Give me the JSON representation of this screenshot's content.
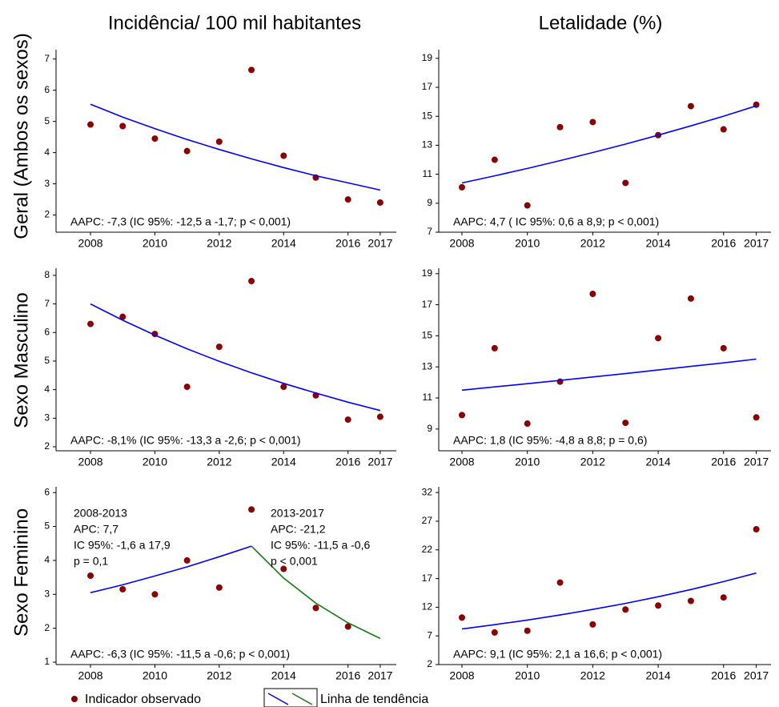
{
  "column_titles": [
    "Incidência/ 100 mil habitantes",
    "Letalidade (%)"
  ],
  "row_titles": [
    "Geral (Ambos os sexos)",
    "Sexo Masculino",
    "Sexo Feminino"
  ],
  "legend": [
    "Indicador observado",
    "Linha de tendência"
  ],
  "chart_data": [
    {
      "type": "scatter",
      "x": [
        2008,
        2009,
        2010,
        2011,
        2012,
        2013,
        2014,
        2015,
        2016,
        2017
      ],
      "series": [
        {
          "kind": "point",
          "color": "#8b0000",
          "values": [
            4.9,
            4.85,
            4.45,
            4.05,
            4.35,
            6.65,
            3.9,
            3.2,
            2.5,
            2.4
          ]
        },
        {
          "kind": "line",
          "color": "#0000ff",
          "values": [
            5.55,
            5.14,
            4.77,
            4.42,
            4.1,
            3.8,
            3.52,
            3.26,
            3.03,
            2.8
          ]
        }
      ],
      "annotation": "AAPC: -7,3 (IC 95%: -12,5 a -1,7; p < 0,001)",
      "xlim": [
        2006.93,
        2017.5
      ],
      "xticks": [
        2008,
        2010,
        2012,
        2014,
        2016,
        2017
      ],
      "ylim": [
        1.45,
        7.3
      ],
      "yticks": [
        2,
        3,
        4,
        5,
        6,
        7
      ]
    },
    {
      "type": "scatter",
      "x": [
        2008,
        2009,
        2010,
        2011,
        2012,
        2013,
        2014,
        2015,
        2016,
        2017
      ],
      "series": [
        {
          "kind": "point",
          "color": "#8b0000",
          "values": [
            10.1,
            12.0,
            8.85,
            14.25,
            14.6,
            10.4,
            13.7,
            15.7,
            14.1,
            15.8
          ]
        },
        {
          "kind": "line",
          "color": "#0000ff",
          "values": [
            10.4,
            10.89,
            11.4,
            11.94,
            12.5,
            13.08,
            13.7,
            14.34,
            15.01,
            15.72
          ]
        }
      ],
      "annotation": "AAPC: 4,7 ( IC 95%: 0,6 a 8,9; p < 0,001)",
      "xlim": [
        2007.29,
        2017.45
      ],
      "xticks": [
        2008,
        2010,
        2012,
        2014,
        2016,
        2017
      ],
      "ylim": [
        7,
        19.6
      ],
      "yticks": [
        7,
        9,
        11,
        13,
        15,
        17,
        19
      ]
    },
    {
      "type": "scatter",
      "x": [
        2008,
        2009,
        2010,
        2011,
        2012,
        2013,
        2014,
        2015,
        2016,
        2017
      ],
      "series": [
        {
          "kind": "point",
          "color": "#8b0000",
          "values": [
            6.3,
            6.55,
            5.95,
            4.1,
            5.5,
            7.8,
            4.1,
            3.8,
            2.95,
            3.05
          ]
        },
        {
          "kind": "line",
          "color": "#0000ff",
          "values": [
            7.0,
            6.43,
            5.91,
            5.43,
            4.99,
            4.59,
            4.22,
            3.88,
            3.56,
            3.27
          ]
        }
      ],
      "annotation": "AAPC: -8,1% (IC 95%: -13,3 a -2,6; p < 0,001)",
      "xlim": [
        2006.93,
        2017.5
      ],
      "xticks": [
        2008,
        2010,
        2012,
        2014,
        2016,
        2017
      ],
      "ylim": [
        1.86,
        8.25
      ],
      "yticks": [
        2,
        3,
        4,
        5,
        6,
        7,
        8
      ]
    },
    {
      "type": "scatter",
      "x": [
        2008,
        2009,
        2010,
        2011,
        2012,
        2013,
        2014,
        2015,
        2016,
        2017
      ],
      "series": [
        {
          "kind": "point",
          "color": "#8b0000",
          "values": [
            9.9,
            14.2,
            9.35,
            12.05,
            17.7,
            9.4,
            14.85,
            17.4,
            14.2,
            9.75
          ]
        },
        {
          "kind": "line",
          "color": "#0000ff",
          "values": [
            11.5,
            11.71,
            11.92,
            12.13,
            12.35,
            12.57,
            12.8,
            13.03,
            13.26,
            13.5
          ]
        }
      ],
      "annotation": "AAPC: 1,8 (IC 95%: -4,8 a 8,8; p = 0,6)",
      "xlim": [
        2007.29,
        2017.45
      ],
      "xticks": [
        2008,
        2010,
        2012,
        2014,
        2016,
        2017
      ],
      "ylim": [
        7.6,
        19.35
      ],
      "yticks": [
        9,
        11,
        13,
        15,
        17,
        19
      ]
    },
    {
      "type": "scatter",
      "x": [
        2008,
        2009,
        2010,
        2011,
        2012,
        2013,
        2014,
        2015,
        2016,
        2017
      ],
      "series": [
        {
          "kind": "point",
          "color": "#8b0000",
          "values": [
            3.55,
            3.15,
            3.0,
            4.0,
            3.2,
            5.5,
            3.75,
            2.6,
            2.05,
            null
          ]
        },
        {
          "kind": "line",
          "color": "#0000ff",
          "values": [
            3.05,
            3.28,
            3.54,
            3.81,
            4.11,
            4.42,
            null,
            null,
            null,
            null
          ]
        },
        {
          "kind": "line",
          "color": "#1a7a1a",
          "values": [
            null,
            null,
            null,
            null,
            null,
            4.42,
            3.48,
            2.74,
            2.16,
            1.7
          ]
        }
      ],
      "annotation": "AAPC: -6,3 (IC 95%: -11,5 a -0,6; p < 0,001)",
      "segment_notes": [
        [
          "2008-2013",
          "APC: 7,7",
          "IC 95%: -1,6 a 17,9",
          "p = 0,1"
        ],
        [
          "2013-2017",
          "APC: -21,2",
          "IC 95%: -11,5 a -0,6",
          "p < 0,001"
        ]
      ],
      "xlim": [
        2006.93,
        2017.5
      ],
      "xticks": [
        2008,
        2010,
        2012,
        2014,
        2016,
        2017
      ],
      "ylim": [
        0.93,
        6.17
      ],
      "yticks": [
        1,
        2,
        3,
        4,
        5,
        6
      ]
    },
    {
      "type": "scatter",
      "x": [
        2008,
        2009,
        2010,
        2011,
        2012,
        2013,
        2014,
        2015,
        2016,
        2017
      ],
      "series": [
        {
          "kind": "point",
          "color": "#8b0000",
          "values": [
            10.2,
            7.6,
            7.9,
            16.3,
            9.0,
            11.6,
            12.3,
            13.1,
            13.7,
            25.6
          ]
        },
        {
          "kind": "line",
          "color": "#0000ff",
          "values": [
            8.2,
            8.95,
            9.76,
            10.65,
            11.62,
            12.67,
            13.83,
            15.09,
            16.46,
            17.96
          ]
        }
      ],
      "annotation": "AAPC: 9,1 (IC 95%: 2,1 a 16,6; p < 0,001)",
      "xlim": [
        2007.29,
        2017.45
      ],
      "xticks": [
        2008,
        2010,
        2012,
        2014,
        2016,
        2017
      ],
      "ylim": [
        2,
        33
      ],
      "yticks": [
        2,
        7,
        12,
        17,
        22,
        27,
        32
      ]
    }
  ]
}
